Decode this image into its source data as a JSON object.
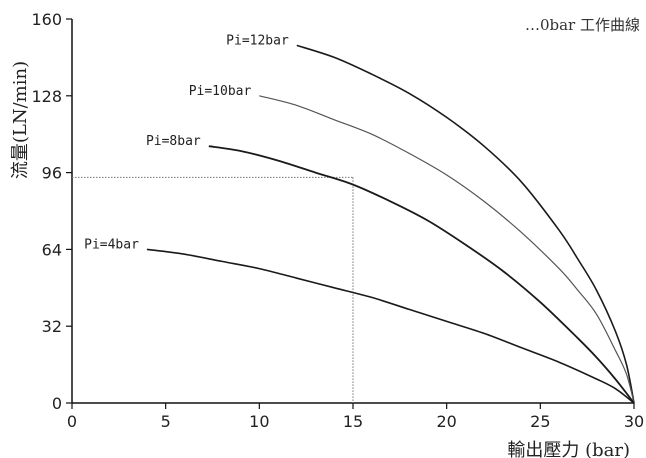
{
  "chart_data": {
    "type": "line",
    "title": "…0bar 工作曲線",
    "xlabel": "輸出壓力 (bar)",
    "ylabel": "流量(LN/min)",
    "xlim": [
      0,
      30
    ],
    "ylim": [
      0,
      160
    ],
    "x_ticks": [
      0,
      5,
      10,
      15,
      20,
      25,
      30
    ],
    "y_ticks": [
      0,
      32,
      64,
      96,
      128,
      160
    ],
    "grid": false,
    "series": [
      {
        "name": "Pi=12bar",
        "x": [
          12,
          14,
          16,
          18,
          20,
          22,
          24,
          26,
          27,
          28,
          29,
          29.6,
          30
        ],
        "y": [
          149,
          144,
          137,
          129,
          119,
          107,
          92,
          72,
          60,
          47,
          30,
          16,
          0
        ]
      },
      {
        "name": "Pi=10bar",
        "x": [
          10,
          12,
          14,
          16,
          18,
          20,
          22,
          24,
          26,
          27,
          28,
          29,
          29.6,
          30
        ],
        "y": [
          128,
          124,
          118,
          112,
          104,
          95,
          84,
          71,
          56,
          47,
          37,
          22,
          12,
          0
        ]
      },
      {
        "name": "Pi=8bar",
        "x": [
          7.3,
          9,
          11,
          13,
          15,
          17,
          19,
          21,
          23,
          25,
          27,
          28,
          29,
          30
        ],
        "y": [
          107,
          105,
          101,
          96,
          91,
          84,
          76,
          66,
          55,
          42,
          27,
          19,
          10,
          0
        ]
      },
      {
        "name": "Pi=4bar",
        "x": [
          4,
          6,
          8,
          10,
          12,
          14,
          16,
          18,
          20,
          22,
          24,
          26,
          28,
          29,
          30
        ],
        "y": [
          64,
          62,
          59,
          56,
          52,
          48,
          44,
          39,
          34,
          29,
          23,
          17,
          10,
          6,
          0
        ]
      }
    ],
    "annotations": [
      {
        "type": "reference-line",
        "x": 15,
        "y": 94
      }
    ]
  }
}
